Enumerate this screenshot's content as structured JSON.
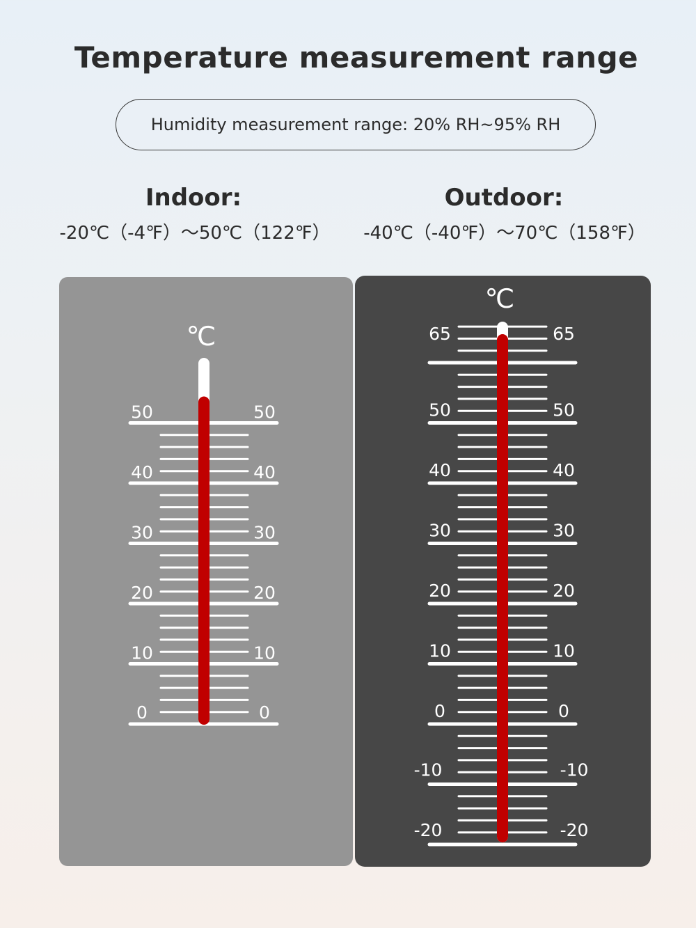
{
  "title": "Temperature measurement range",
  "humidity_note": "Humidity measurement range: 20% RH~95% RH",
  "indoor": {
    "heading": "Indoor:",
    "range": "-20℃（-4℉）～50℃（122℉）",
    "unit": "℃",
    "scale_labels": [
      "50",
      "40",
      "30",
      "20",
      "10",
      "0"
    ],
    "fill_top_value": 50,
    "panel_color": "#959595"
  },
  "outdoor": {
    "heading": "Outdoor:",
    "range": "-40℃（-40℉）～70℃（158℉）",
    "unit": "℃",
    "scale_labels": [
      "65",
      "50",
      "40",
      "30",
      "20",
      "10",
      "0",
      "-10",
      "-20"
    ],
    "fill_top_value": 65,
    "panel_color": "#474747"
  },
  "mercury_color": "#c00000"
}
